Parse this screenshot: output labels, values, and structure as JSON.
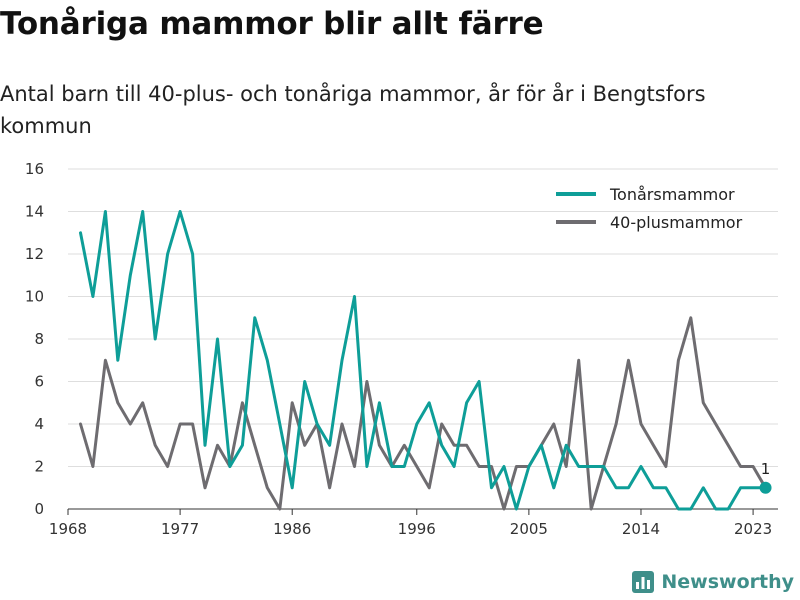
{
  "header": {
    "title": "Tonåriga mammor blir allt färre",
    "subtitle": "Antal barn till 40-plus- och tonåriga mammor, år för år i Bengtsfors kommun"
  },
  "brand": {
    "name": "Newsworthy",
    "icon": "newsworthy-logo-icon",
    "color": "#3f8f8a"
  },
  "chart_data": {
    "type": "line",
    "title": "",
    "xlabel": "",
    "ylabel": "",
    "ylim": [
      0,
      16
    ],
    "y_ticks": [
      0,
      2,
      4,
      6,
      8,
      10,
      12,
      14,
      16
    ],
    "xlim": [
      1968,
      2025
    ],
    "x_ticks": [
      1968,
      1977,
      1986,
      1996,
      2005,
      2014,
      2023
    ],
    "x_tick_labels": [
      "1968",
      "1977",
      "1986",
      "1996",
      "2005",
      "2014",
      "2023"
    ],
    "grid": "horizontal",
    "legend_position": "top-right",
    "end_label": "1",
    "x": [
      1969,
      1970,
      1971,
      1972,
      1973,
      1974,
      1975,
      1976,
      1977,
      1978,
      1979,
      1980,
      1981,
      1982,
      1983,
      1984,
      1985,
      1986,
      1987,
      1988,
      1989,
      1990,
      1991,
      1992,
      1993,
      1994,
      1995,
      1996,
      1997,
      1998,
      1999,
      2000,
      2001,
      2002,
      2003,
      2004,
      2005,
      2006,
      2007,
      2008,
      2009,
      2010,
      2011,
      2012,
      2013,
      2014,
      2015,
      2016,
      2017,
      2018,
      2019,
      2020,
      2021,
      2022,
      2023,
      2024
    ],
    "series": [
      {
        "name": "Tonårsmammor",
        "color": "#0e9e98",
        "values": [
          13,
          10,
          14,
          7,
          11,
          14,
          8,
          12,
          14,
          12,
          3,
          8,
          2,
          3,
          9,
          7,
          4,
          1,
          6,
          4,
          3,
          7,
          10,
          2,
          5,
          2,
          2,
          4,
          5,
          3,
          2,
          5,
          6,
          1,
          2,
          0,
          2,
          3,
          1,
          3,
          2,
          2,
          2,
          1,
          1,
          2,
          1,
          1,
          0,
          0,
          1,
          0,
          0,
          1,
          1,
          1
        ]
      },
      {
        "name": "40-plusmammor",
        "color": "#6e6c70",
        "values": [
          4,
          2,
          7,
          5,
          4,
          5,
          3,
          2,
          4,
          4,
          1,
          3,
          2,
          5,
          3,
          1,
          0,
          5,
          3,
          4,
          1,
          4,
          2,
          6,
          3,
          2,
          3,
          2,
          1,
          4,
          3,
          3,
          2,
          2,
          0,
          2,
          2,
          3,
          4,
          2,
          7,
          0,
          2,
          4,
          7,
          4,
          3,
          2,
          7,
          9,
          5,
          4,
          3,
          2,
          2,
          1
        ]
      }
    ]
  }
}
